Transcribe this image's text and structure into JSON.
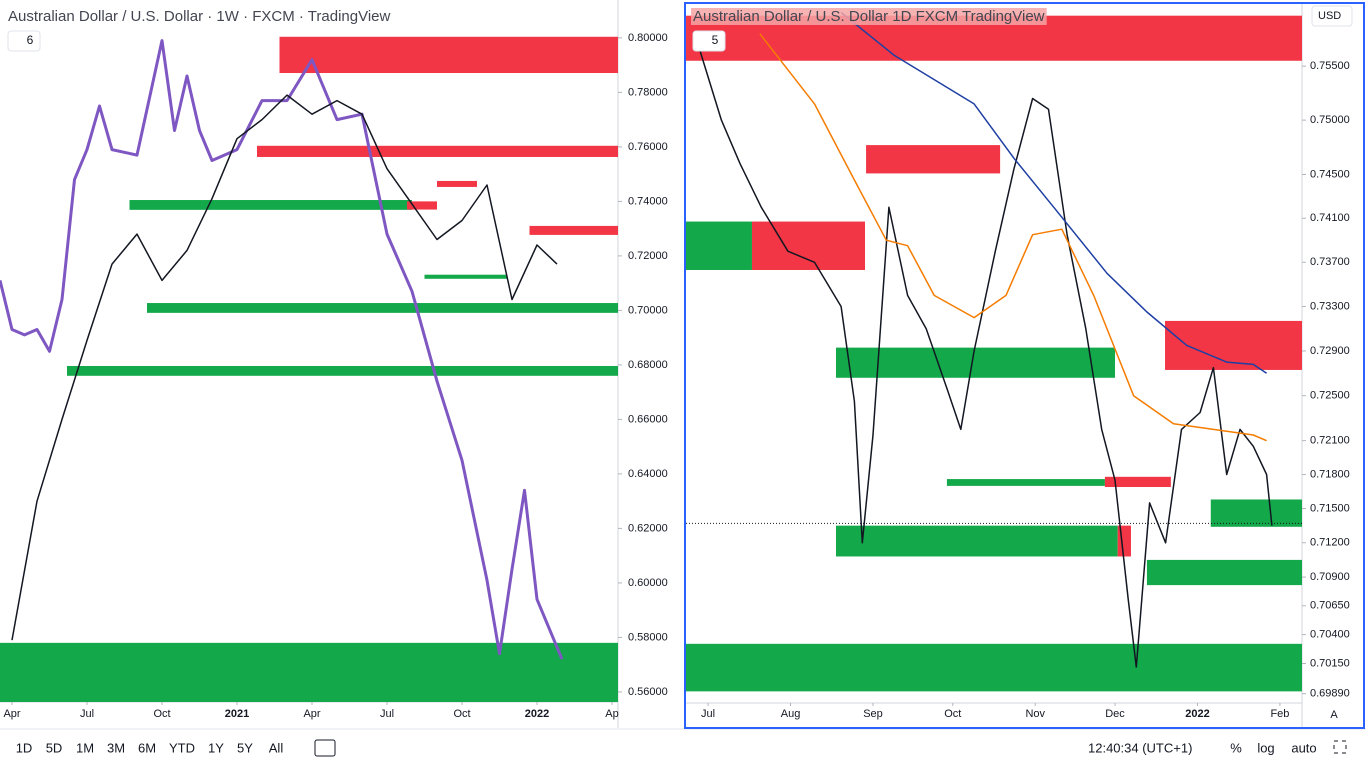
{
  "chart_data": [
    {
      "type": "line",
      "title": "Australian Dollar / U.S. Dollar · 1W · FXCM · TradingView",
      "interval_badge": "6",
      "xlim": [
        -0.48,
        24.24
      ],
      "xticks": [
        {
          "value": 0,
          "label": "Apr"
        },
        {
          "value": 3,
          "label": "Jul"
        },
        {
          "value": 6,
          "label": "Oct"
        },
        {
          "value": 9,
          "label": "2021"
        },
        {
          "value": 12,
          "label": "Apr"
        },
        {
          "value": 15,
          "label": "Jul"
        },
        {
          "value": 18,
          "label": "Oct"
        },
        {
          "value": 21,
          "label": "2022"
        },
        {
          "value": 24,
          "label": "Ap"
        }
      ],
      "ylim": [
        0.5563,
        0.8139
      ],
      "log_scale": false,
      "yticks": [
        {
          "value": 0.56,
          "label": "0.56000"
        },
        {
          "value": 0.58,
          "label": "0.58000"
        },
        {
          "value": 0.6,
          "label": "0.60000"
        },
        {
          "value": 0.62,
          "label": "0.62000"
        },
        {
          "value": 0.64,
          "label": "0.64000"
        },
        {
          "value": 0.66,
          "label": "0.66000"
        },
        {
          "value": 0.68,
          "label": "0.68000"
        },
        {
          "value": 0.7,
          "label": "0.70000"
        },
        {
          "value": 0.72,
          "label": "0.72000"
        },
        {
          "value": 0.74,
          "label": "0.74000"
        },
        {
          "value": 0.76,
          "label": "0.76000"
        },
        {
          "value": 0.78,
          "label": "0.78000"
        },
        {
          "value": 0.8,
          "label": "0.80000"
        }
      ],
      "zones": [
        {
          "color": "#f23645",
          "x": [
            10.7,
            24.24
          ],
          "y": [
            0.7871,
            0.8004
          ]
        },
        {
          "color": "#f23645",
          "x": [
            9.8,
            24.24
          ],
          "y": [
            0.7563,
            0.7604
          ]
        },
        {
          "color": "#13a84a",
          "x": [
            4.7,
            16
          ],
          "y": [
            0.7369,
            0.7405
          ]
        },
        {
          "color": "#f23645",
          "x": [
            15.8,
            17
          ],
          "y": [
            0.737,
            0.74
          ]
        },
        {
          "color": "#f23645",
          "x": [
            17,
            18.6
          ],
          "y": [
            0.7453,
            0.7475
          ]
        },
        {
          "color": "#f23645",
          "x": [
            20.7,
            24.24
          ],
          "y": [
            0.7277,
            0.731
          ]
        },
        {
          "color": "#13a84a",
          "x": [
            16.5,
            19.8
          ],
          "y": [
            0.7116,
            0.7131
          ]
        },
        {
          "color": "#13a84a",
          "x": [
            5.4,
            24.24
          ],
          "y": [
            0.6991,
            0.7027
          ]
        },
        {
          "color": "#13a84a",
          "x": [
            2.2,
            24.24
          ],
          "y": [
            0.676,
            0.6796
          ]
        },
        {
          "color": "#13a84a",
          "x": [
            -0.48,
            24.24
          ],
          "y": [
            0.5563,
            0.578
          ]
        }
      ],
      "series": [
        {
          "color": "#7e57c2",
          "width": 3,
          "x": [
            -0.48,
            0,
            0.5,
            1,
            1.5,
            2,
            2.5,
            3,
            3.5,
            4,
            5,
            6,
            6.5,
            7,
            7.5,
            8,
            9,
            10,
            11,
            12,
            13,
            14,
            15,
            16,
            17,
            18,
            19,
            19.5,
            20,
            20.5,
            21,
            22
          ],
          "values": [
            0.711,
            0.693,
            0.691,
            0.693,
            0.685,
            0.704,
            0.748,
            0.759,
            0.775,
            0.759,
            0.757,
            0.799,
            0.766,
            0.786,
            0.766,
            0.755,
            0.759,
            0.777,
            0.777,
            0.792,
            0.77,
            0.772,
            0.728,
            0.707,
            0.674,
            0.645,
            0.601,
            0.574,
            0.605,
            0.634,
            0.594,
            0.572
          ]
        },
        {
          "color": "#131722",
          "width": 1.5,
          "x": [
            0,
            1,
            2,
            3,
            4,
            5,
            6,
            7,
            8,
            9,
            10,
            11,
            12,
            13,
            14,
            15,
            16,
            17,
            18,
            19,
            20,
            21,
            21.8
          ],
          "values": [
            0.579,
            0.63,
            0.66,
            0.689,
            0.717,
            0.728,
            0.711,
            0.722,
            0.741,
            0.763,
            0.77,
            0.779,
            0.772,
            0.777,
            0.772,
            0.752,
            0.739,
            0.726,
            0.733,
            0.746,
            0.704,
            0.724,
            0.717
          ]
        }
      ]
    },
    {
      "type": "line",
      "title": "Australian Dollar / U.S. Dollar  1D  FXCM  TradingView",
      "interval_badge": "5",
      "currency": "USD",
      "scale_mode": "A",
      "xlim": [
        -8.3,
        223.3
      ],
      "xticks": [
        {
          "value": 0,
          "label": "Jul"
        },
        {
          "value": 31,
          "label": "Aug"
        },
        {
          "value": 62,
          "label": "Sep"
        },
        {
          "value": 92,
          "label": "Oct"
        },
        {
          "value": 123,
          "label": "Nov"
        },
        {
          "value": 153,
          "label": "Dec"
        },
        {
          "value": 184,
          "label": "2022"
        },
        {
          "value": 215,
          "label": "Feb"
        }
      ],
      "ylim": [
        0.6981,
        0.7607
      ],
      "log_scale": true,
      "yticks": [
        {
          "value": 0.6989,
          "label": "0.69890"
        },
        {
          "value": 0.7015,
          "label": "0.70150"
        },
        {
          "value": 0.704,
          "label": "0.70400"
        },
        {
          "value": 0.7065,
          "label": "0.70650"
        },
        {
          "value": 0.709,
          "label": "0.70900"
        },
        {
          "value": 0.712,
          "label": "0.71200"
        },
        {
          "value": 0.715,
          "label": "0.71500"
        },
        {
          "value": 0.718,
          "label": "0.71800"
        },
        {
          "value": 0.721,
          "label": "0.72100"
        },
        {
          "value": 0.725,
          "label": "0.72500"
        },
        {
          "value": 0.729,
          "label": "0.72900"
        },
        {
          "value": 0.733,
          "label": "0.73300"
        },
        {
          "value": 0.737,
          "label": "0.73700"
        },
        {
          "value": 0.741,
          "label": "0.74100"
        },
        {
          "value": 0.745,
          "label": "0.74500"
        },
        {
          "value": 0.75,
          "label": "0.75000"
        },
        {
          "value": 0.755,
          "label": "0.75500"
        }
      ],
      "last_price": 0.7137,
      "zones": [
        {
          "color": "#f23645",
          "x": [
            -8.3,
            223.3
          ],
          "y": [
            0.7555,
            0.7597
          ]
        },
        {
          "color": "#f23645",
          "x": [
            59.4,
            109.8
          ],
          "y": [
            0.7451,
            0.7477
          ]
        },
        {
          "color": "#f23645",
          "x": [
            16.5,
            59
          ],
          "y": [
            0.7363,
            0.7407
          ]
        },
        {
          "color": "#13a84a",
          "x": [
            -8.3,
            16.5
          ],
          "y": [
            0.7363,
            0.7407
          ]
        },
        {
          "color": "#13a84a",
          "x": [
            48.1,
            153
          ],
          "y": [
            0.7266,
            0.7293
          ]
        },
        {
          "color": "#f23645",
          "x": [
            171.8,
            223.3
          ],
          "y": [
            0.7273,
            0.7317
          ]
        },
        {
          "color": "#13a84a",
          "x": [
            89.8,
            149.2
          ],
          "y": [
            0.717,
            0.7176
          ]
        },
        {
          "color": "#f23645",
          "x": [
            149.2,
            174
          ],
          "y": [
            0.7169,
            0.7178
          ]
        },
        {
          "color": "#13a84a",
          "x": [
            48.1,
            154
          ],
          "y": [
            0.7108,
            0.7135
          ]
        },
        {
          "color": "#f23645",
          "x": [
            154,
            159
          ],
          "y": [
            0.7108,
            0.7135
          ]
        },
        {
          "color": "#13a84a",
          "x": [
            189,
            223.3
          ],
          "y": [
            0.7134,
            0.7158
          ]
        },
        {
          "color": "#13a84a",
          "x": [
            165,
            223.3
          ],
          "y": [
            0.7083,
            0.7105
          ]
        },
        {
          "color": "#13a84a",
          "x": [
            -8.3,
            223.3
          ],
          "y": [
            0.6991,
            0.7032
          ]
        }
      ],
      "series": [
        {
          "color": "#131722",
          "width": 1.5,
          "x": [
            -5,
            5,
            12,
            20,
            30,
            40,
            50,
            55,
            58,
            62,
            68,
            75,
            82,
            90,
            95,
            100,
            108,
            115,
            122,
            128,
            135,
            142,
            148,
            153,
            158,
            161,
            166,
            172,
            178,
            185,
            190,
            195,
            200,
            205,
            210,
            212
          ],
          "values": [
            0.758,
            0.75,
            0.746,
            0.742,
            0.738,
            0.737,
            0.733,
            0.7245,
            0.712,
            0.7215,
            0.742,
            0.734,
            0.731,
            0.7255,
            0.722,
            0.729,
            0.738,
            0.7455,
            0.752,
            0.751,
            0.7395,
            0.731,
            0.722,
            0.7175,
            0.707,
            0.7012,
            0.7155,
            0.712,
            0.722,
            0.7235,
            0.7275,
            0.718,
            0.722,
            0.7205,
            0.718,
            0.7135
          ]
        },
        {
          "color": "#f57c00",
          "width": 1.5,
          "x": [
            19.5,
            40,
            55,
            67,
            75,
            85,
            100,
            112,
            122,
            133,
            145,
            160,
            175,
            190,
            205,
            210
          ],
          "values": [
            0.758,
            0.7515,
            0.7445,
            0.739,
            0.7385,
            0.734,
            0.732,
            0.734,
            0.7395,
            0.74,
            0.734,
            0.725,
            0.7225,
            0.722,
            0.7215,
            0.721
          ]
        },
        {
          "color": "#1e3fa3",
          "width": 1.5,
          "x": [
            50,
            70,
            100,
            115,
            130,
            150,
            165,
            180,
            195,
            205,
            210
          ],
          "values": [
            0.76,
            0.756,
            0.7515,
            0.7465,
            0.742,
            0.736,
            0.7325,
            0.7295,
            0.728,
            0.7278,
            0.727
          ]
        }
      ]
    }
  ],
  "toolbar": {
    "ranges": [
      "1D",
      "5D",
      "1M",
      "3M",
      "6M",
      "YTD",
      "1Y",
      "5Y",
      "All"
    ],
    "time": "12:40:34 (UTC+1)",
    "percent": "%",
    "log": "log",
    "auto": "auto"
  }
}
